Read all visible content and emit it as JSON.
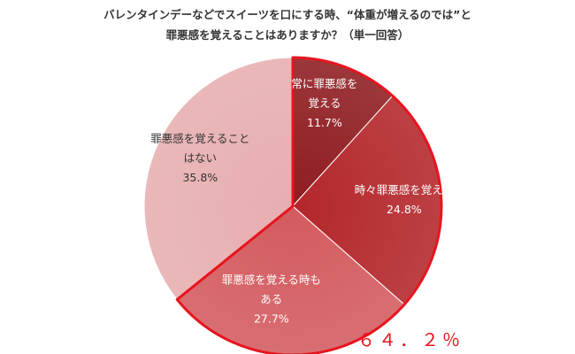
{
  "title_line1": "バレンタインデーなどでスイーツを口にする時、“体重が増えるのでは”と",
  "title_line2": "罪悪感を覚えることはありますか？（単一回答）",
  "highlight_total": "６４．２％",
  "chart_data": {
    "type": "pie",
    "title": "バレンタインデーなどでスイーツを口にする時、“体重が増えるのでは”と罪悪感を覚えることはありますか？（単一回答）",
    "slices": [
      {
        "label_lines": [
          "常に罪悪感を",
          "覚える"
        ],
        "value": 11.7,
        "value_text": "11.7%",
        "color": "#8e1c20",
        "highlighted": true
      },
      {
        "label_lines": [
          "時々罪悪感を覚える"
        ],
        "value": 24.8,
        "value_text": "24.8%",
        "color": "#b3262a",
        "highlighted": true
      },
      {
        "label_lines": [
          "罪悪感を覚える時も",
          "ある"
        ],
        "value": 27.7,
        "value_text": "27.7%",
        "color": "#d35a5e",
        "highlighted": true
      },
      {
        "label_lines": [
          "罪悪感を覚えること",
          "はない"
        ],
        "value": 35.8,
        "value_text": "35.8%",
        "color": "#e7aeb0",
        "highlighted": false
      }
    ],
    "start_angle_deg": 0,
    "direction": "clockwise",
    "highlight_outline_color": "#e8141e"
  }
}
